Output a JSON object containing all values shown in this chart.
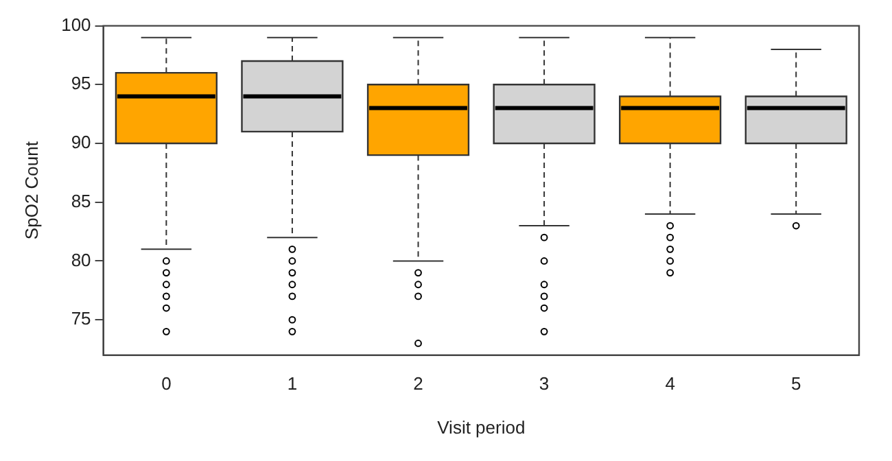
{
  "chart_data": {
    "type": "box",
    "xlabel": "Visit period",
    "ylabel": "SpO2 Count",
    "categories": [
      "0",
      "1",
      "2",
      "3",
      "4",
      "5"
    ],
    "colors": [
      "#ffa500",
      "#d3d3d3",
      "#ffa500",
      "#d3d3d3",
      "#ffa500",
      "#d3d3d3"
    ],
    "boxes": [
      {
        "low": 81,
        "q1": 90,
        "median": 94,
        "q3": 96,
        "high": 99,
        "outliers": [
          80,
          79,
          78,
          77,
          76,
          74
        ]
      },
      {
        "low": 82,
        "q1": 91,
        "median": 94,
        "q3": 97,
        "high": 99,
        "outliers": [
          81,
          80,
          79,
          78,
          77,
          75,
          74
        ]
      },
      {
        "low": 80,
        "q1": 89,
        "median": 93,
        "q3": 95,
        "high": 99,
        "outliers": [
          79,
          78,
          77,
          73
        ]
      },
      {
        "low": 83,
        "q1": 90,
        "median": 93,
        "q3": 95,
        "high": 99,
        "outliers": [
          82,
          80,
          78,
          77,
          76,
          74
        ]
      },
      {
        "low": 84,
        "q1": 90,
        "median": 93,
        "q3": 94,
        "high": 99,
        "outliers": [
          83,
          82,
          81,
          80,
          79
        ]
      },
      {
        "low": 84,
        "q1": 90,
        "median": 93,
        "q3": 94,
        "high": 98,
        "outliers": [
          83
        ]
      }
    ],
    "ylim": [
      72,
      100
    ],
    "yticks": [
      75,
      80,
      85,
      90,
      95,
      100
    ],
    "grid": false,
    "legend": false
  }
}
